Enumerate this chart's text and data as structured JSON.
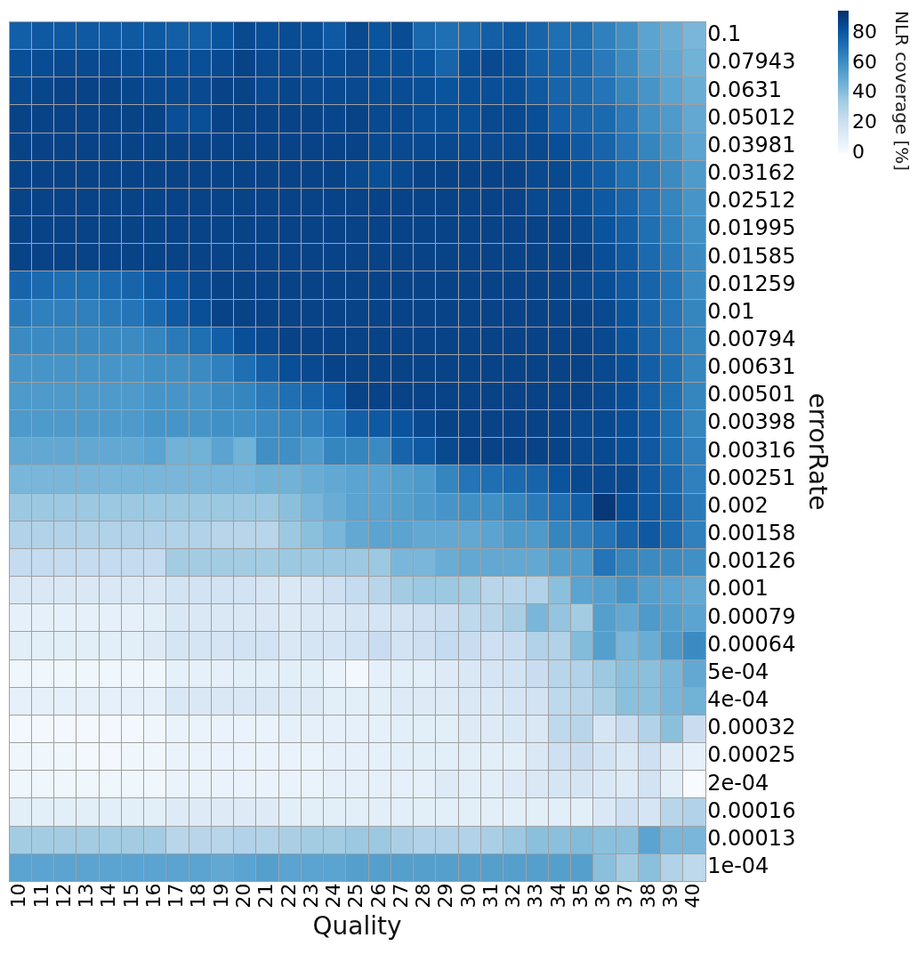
{
  "chart_data": {
    "type": "heatmap",
    "xlabel": "Quality",
    "ylabel": "errorRate",
    "clabel": "NLR coverage [%]",
    "clim": [
      0,
      95
    ],
    "cticks": [
      0,
      20,
      40,
      60,
      80
    ],
    "categories": [
      "10",
      "11",
      "12",
      "13",
      "14",
      "15",
      "16",
      "17",
      "18",
      "19",
      "20",
      "21",
      "22",
      "23",
      "24",
      "25",
      "26",
      "27",
      "28",
      "29",
      "30",
      "31",
      "32",
      "33",
      "34",
      "35",
      "36",
      "37",
      "38",
      "39",
      "40"
    ],
    "y_categories": [
      "0.1",
      "0.07943",
      "0.0631",
      "0.05012",
      "0.03981",
      "0.03162",
      "0.02512",
      "0.01995",
      "0.01585",
      "0.01259",
      "0.01",
      "0.00794",
      "0.00631",
      "0.00501",
      "0.00398",
      "0.00316",
      "0.00251",
      "0.002",
      "0.00158",
      "0.00126",
      "0.001",
      "0.00079",
      "0.00064",
      "5e-04",
      "4e-04",
      "0.00032",
      "0.00025",
      "2e-04",
      "0.00016",
      "0.00013",
      "1e-04"
    ],
    "cells": [
      [
        78,
        80,
        80,
        80,
        80,
        80,
        80,
        78,
        78,
        82,
        86,
        84,
        85,
        84,
        80,
        86,
        82,
        85,
        75,
        72,
        74,
        78,
        80,
        76,
        72,
        72,
        66,
        60,
        52,
        48,
        44
      ],
      [
        84,
        85,
        86,
        86,
        86,
        85,
        85,
        84,
        84,
        86,
        88,
        86,
        86,
        86,
        85,
        86,
        84,
        84,
        82,
        76,
        84,
        86,
        84,
        78,
        76,
        74,
        68,
        62,
        54,
        50,
        46
      ],
      [
        86,
        87,
        88,
        88,
        88,
        87,
        86,
        86,
        86,
        88,
        88,
        86,
        87,
        86,
        86,
        86,
        85,
        85,
        84,
        82,
        84,
        84,
        84,
        80,
        76,
        74,
        70,
        64,
        58,
        52,
        48
      ],
      [
        88,
        88,
        88,
        88,
        88,
        88,
        88,
        84,
        84,
        88,
        88,
        88,
        88,
        88,
        87,
        88,
        86,
        86,
        84,
        84,
        84,
        86,
        86,
        84,
        78,
        76,
        74,
        68,
        60,
        56,
        50
      ],
      [
        88,
        88,
        88,
        88,
        88,
        88,
        88,
        88,
        88,
        88,
        88,
        88,
        88,
        88,
        88,
        88,
        86,
        86,
        86,
        86,
        86,
        86,
        86,
        86,
        84,
        80,
        76,
        70,
        64,
        58,
        52
      ],
      [
        88,
        88,
        88,
        88,
        88,
        88,
        88,
        88,
        88,
        88,
        88,
        88,
        88,
        88,
        88,
        86,
        84,
        86,
        88,
        88,
        88,
        88,
        88,
        86,
        86,
        82,
        78,
        72,
        68,
        62,
        56
      ],
      [
        88,
        88,
        88,
        88,
        88,
        88,
        88,
        88,
        88,
        88,
        88,
        88,
        88,
        88,
        88,
        88,
        88,
        88,
        88,
        88,
        88,
        88,
        88,
        86,
        86,
        84,
        80,
        76,
        70,
        64,
        58
      ],
      [
        88,
        88,
        88,
        88,
        88,
        88,
        88,
        88,
        88,
        88,
        88,
        88,
        88,
        88,
        88,
        88,
        88,
        88,
        88,
        88,
        88,
        88,
        88,
        88,
        88,
        86,
        82,
        78,
        72,
        66,
        60
      ],
      [
        88,
        88,
        88,
        88,
        88,
        88,
        88,
        88,
        88,
        88,
        88,
        88,
        88,
        88,
        88,
        88,
        88,
        88,
        88,
        88,
        88,
        88,
        88,
        88,
        88,
        88,
        84,
        80,
        74,
        68,
        62
      ],
      [
        76,
        74,
        72,
        72,
        74,
        76,
        80,
        82,
        86,
        88,
        88,
        88,
        88,
        88,
        88,
        88,
        88,
        88,
        88,
        88,
        88,
        88,
        88,
        88,
        88,
        86,
        84,
        80,
        76,
        70,
        62
      ],
      [
        68,
        66,
        66,
        66,
        68,
        70,
        74,
        80,
        84,
        88,
        88,
        88,
        88,
        88,
        88,
        88,
        88,
        88,
        88,
        88,
        88,
        88,
        88,
        88,
        88,
        88,
        86,
        82,
        76,
        70,
        64
      ],
      [
        62,
        62,
        62,
        62,
        62,
        62,
        64,
        68,
        72,
        78,
        84,
        86,
        88,
        88,
        88,
        88,
        88,
        88,
        88,
        88,
        88,
        88,
        88,
        88,
        88,
        88,
        86,
        82,
        76,
        70,
        64
      ],
      [
        58,
        58,
        58,
        58,
        58,
        58,
        60,
        60,
        62,
        66,
        72,
        78,
        84,
        86,
        88,
        88,
        88,
        88,
        88,
        88,
        88,
        88,
        88,
        88,
        88,
        88,
        86,
        84,
        78,
        72,
        64
      ],
      [
        56,
        56,
        56,
        56,
        56,
        56,
        58,
        58,
        58,
        62,
        64,
        68,
        72,
        76,
        80,
        88,
        88,
        88,
        88,
        88,
        88,
        88,
        88,
        88,
        88,
        88,
        86,
        84,
        78,
        72,
        64
      ],
      [
        56,
        56,
        56,
        56,
        56,
        56,
        58,
        58,
        58,
        60,
        60,
        62,
        64,
        66,
        70,
        78,
        80,
        82,
        86,
        88,
        88,
        88,
        88,
        88,
        88,
        86,
        86,
        84,
        80,
        72,
        64
      ],
      [
        50,
        50,
        50,
        50,
        50,
        50,
        52,
        46,
        46,
        52,
        46,
        60,
        60,
        56,
        64,
        64,
        62,
        76,
        80,
        86,
        88,
        88,
        88,
        88,
        88,
        86,
        86,
        84,
        80,
        72,
        66
      ],
      [
        44,
        44,
        44,
        44,
        44,
        44,
        44,
        44,
        44,
        44,
        44,
        46,
        46,
        48,
        50,
        52,
        52,
        54,
        56,
        64,
        70,
        72,
        74,
        76,
        82,
        86,
        86,
        86,
        80,
        74,
        66
      ],
      [
        36,
        36,
        36,
        36,
        36,
        36,
        36,
        36,
        36,
        36,
        36,
        36,
        40,
        44,
        48,
        52,
        52,
        54,
        56,
        58,
        60,
        60,
        64,
        68,
        72,
        78,
        92,
        84,
        80,
        76,
        68
      ],
      [
        30,
        30,
        30,
        30,
        30,
        30,
        30,
        30,
        30,
        28,
        28,
        28,
        36,
        40,
        44,
        50,
        52,
        52,
        50,
        50,
        50,
        52,
        56,
        56,
        64,
        66,
        70,
        76,
        80,
        74,
        66
      ],
      [
        24,
        24,
        24,
        24,
        24,
        24,
        24,
        34,
        34,
        34,
        34,
        34,
        36,
        36,
        36,
        36,
        36,
        44,
        44,
        48,
        50,
        50,
        50,
        50,
        54,
        56,
        70,
        64,
        62,
        62,
        60
      ],
      [
        14,
        14,
        14,
        14,
        14,
        14,
        14,
        18,
        18,
        18,
        18,
        16,
        14,
        16,
        20,
        24,
        28,
        34,
        36,
        36,
        34,
        28,
        28,
        30,
        40,
        52,
        54,
        58,
        54,
        52,
        50
      ],
      [
        8,
        8,
        8,
        8,
        8,
        8,
        10,
        14,
        14,
        14,
        14,
        14,
        12,
        14,
        14,
        16,
        16,
        18,
        20,
        22,
        26,
        28,
        32,
        44,
        38,
        34,
        54,
        50,
        56,
        54,
        52
      ],
      [
        10,
        10,
        10,
        10,
        10,
        10,
        12,
        16,
        16,
        16,
        18,
        18,
        14,
        16,
        16,
        18,
        22,
        18,
        20,
        24,
        22,
        20,
        22,
        30,
        30,
        42,
        54,
        44,
        48,
        56,
        62
      ],
      [
        4,
        4,
        4,
        4,
        4,
        4,
        4,
        8,
        8,
        8,
        10,
        10,
        10,
        10,
        6,
        2,
        8,
        10,
        10,
        12,
        14,
        16,
        18,
        22,
        28,
        30,
        36,
        40,
        40,
        44,
        50
      ],
      [
        8,
        8,
        8,
        8,
        8,
        8,
        8,
        14,
        14,
        14,
        14,
        14,
        12,
        12,
        10,
        10,
        10,
        12,
        12,
        12,
        14,
        14,
        16,
        18,
        26,
        28,
        32,
        40,
        40,
        44,
        46
      ],
      [
        2,
        2,
        2,
        2,
        2,
        2,
        4,
        6,
        6,
        6,
        6,
        6,
        8,
        8,
        8,
        8,
        8,
        10,
        10,
        10,
        12,
        12,
        14,
        14,
        26,
        28,
        16,
        22,
        30,
        40,
        22
      ],
      [
        4,
        4,
        4,
        2,
        2,
        4,
        4,
        6,
        6,
        6,
        6,
        6,
        6,
        6,
        8,
        8,
        8,
        10,
        10,
        10,
        10,
        10,
        10,
        14,
        20,
        22,
        18,
        14,
        20,
        12,
        8
      ],
      [
        4,
        4,
        4,
        4,
        4,
        4,
        4,
        6,
        6,
        6,
        6,
        6,
        6,
        6,
        8,
        8,
        8,
        8,
        8,
        12,
        10,
        10,
        12,
        14,
        16,
        16,
        14,
        12,
        18,
        10,
        0
      ],
      [
        10,
        10,
        10,
        10,
        10,
        10,
        10,
        12,
        12,
        12,
        12,
        12,
        10,
        10,
        10,
        10,
        10,
        10,
        10,
        10,
        10,
        10,
        10,
        10,
        10,
        10,
        14,
        20,
        16,
        28,
        30
      ],
      [
        34,
        34,
        34,
        34,
        34,
        34,
        34,
        28,
        28,
        28,
        30,
        30,
        32,
        34,
        34,
        36,
        36,
        32,
        30,
        30,
        30,
        32,
        36,
        40,
        40,
        42,
        40,
        40,
        52,
        44,
        44
      ],
      [
        52,
        52,
        52,
        52,
        52,
        52,
        52,
        52,
        52,
        50,
        52,
        54,
        52,
        52,
        52,
        54,
        54,
        54,
        54,
        54,
        54,
        54,
        54,
        54,
        54,
        54,
        40,
        34,
        40,
        30,
        26
      ]
    ]
  }
}
